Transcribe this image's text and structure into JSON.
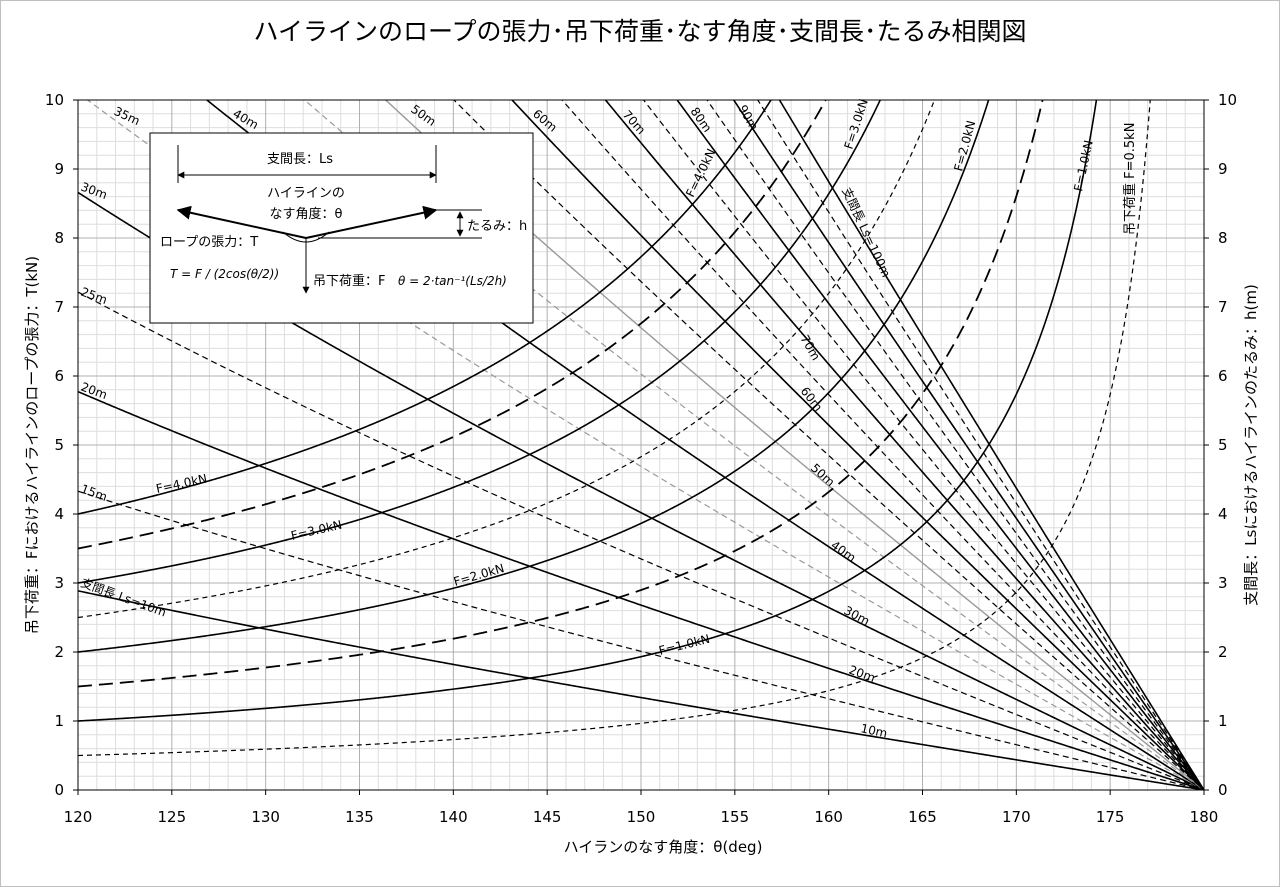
{
  "chart_data": {
    "type": "line",
    "title": "ハイラインのロープの張力･吊下荷重･なす角度･支間長･たるみ相関図",
    "xlabel": "ハイランのなす角度：θ(deg)",
    "ylabel_left": "吊下荷重：Fにおけるハイラインのロープの張力：T(kN)",
    "ylabel_right": "支間長：Lsにおけるハイラインのたるみ：h(m)",
    "xlim": [
      120,
      180
    ],
    "ylim": [
      0,
      10
    ],
    "x_ticks": [
      120,
      125,
      130,
      135,
      140,
      145,
      150,
      155,
      160,
      165,
      170,
      175,
      180
    ],
    "y_ticks": [
      0,
      1,
      2,
      3,
      4,
      5,
      6,
      7,
      8,
      9,
      10
    ],
    "grid": true,
    "tension_series": [
      {
        "F": 0.5,
        "label": "吊下荷重 F=0.5kN",
        "style": "dashed-thin"
      },
      {
        "F": 1.0,
        "label": "F=1.0kN",
        "style": "solid"
      },
      {
        "F": 1.5,
        "label": "",
        "style": "dashed-long"
      },
      {
        "F": 2.0,
        "label": "F=2.0kN",
        "style": "solid"
      },
      {
        "F": 2.5,
        "label": "",
        "style": "dashed-thin"
      },
      {
        "F": 3.0,
        "label": "F=3.0kN",
        "style": "solid"
      },
      {
        "F": 3.5,
        "label": "",
        "style": "dashed-long"
      },
      {
        "F": 4.0,
        "label": "F=4.0kN",
        "style": "solid"
      }
    ],
    "sag_series": [
      {
        "Ls": 10,
        "label_start": "支間長 Ls=10m",
        "label_end": "10m",
        "style": "solid"
      },
      {
        "Ls": 15,
        "label_start": "15m",
        "label_end": "",
        "style": "dashed"
      },
      {
        "Ls": 20,
        "label_start": "20m",
        "label_end": "20m",
        "style": "solid"
      },
      {
        "Ls": 25,
        "label_start": "25m",
        "label_end": "",
        "style": "dashed"
      },
      {
        "Ls": 30,
        "label_start": "30m",
        "label_end": "30m",
        "style": "solid"
      },
      {
        "Ls": 35,
        "label_start": "35m",
        "label_end": "",
        "style": "dashed-gray"
      },
      {
        "Ls": 40,
        "label_start": "40m",
        "label_end": "40m",
        "style": "solid"
      },
      {
        "Ls": 45,
        "label_start": "",
        "label_end": "",
        "style": "dashed-gray"
      },
      {
        "Ls": 50,
        "label_start": "50m",
        "label_end": "50m",
        "style": "solid-gray"
      },
      {
        "Ls": 55,
        "label_start": "",
        "label_end": "",
        "style": "dashed"
      },
      {
        "Ls": 60,
        "label_start": "60m",
        "label_end": "60m",
        "style": "solid"
      },
      {
        "Ls": 65,
        "label_start": "",
        "label_end": "",
        "style": "dashed"
      },
      {
        "Ls": 70,
        "label_start": "70m",
        "label_end": "70m",
        "style": "solid"
      },
      {
        "Ls": 75,
        "label_start": "",
        "label_end": "",
        "style": "dashed"
      },
      {
        "Ls": 80,
        "label_start": "80m",
        "label_end": "",
        "style": "solid"
      },
      {
        "Ls": 85,
        "label_start": "",
        "label_end": "",
        "style": "dashed"
      },
      {
        "Ls": 90,
        "label_start": "90m",
        "label_end": "",
        "style": "solid"
      },
      {
        "Ls": 95,
        "label_start": "",
        "label_end": "",
        "style": "dashed"
      },
      {
        "Ls": 100,
        "label_start": "",
        "label_end": "支間長 Ls=100m",
        "style": "solid"
      }
    ],
    "inset": {
      "span_label": "支間長：Ls",
      "angle_label_line1": "ハイラインの",
      "angle_label_line2": "なす角度：θ",
      "sag_label": "たるみ：h",
      "tension_label": "ロープの張力：T",
      "load_label": "吊下荷重：F",
      "formula_tension": "T = F / (2cos(θ/2))",
      "formula_angle": "θ = 2·tan⁻¹(Ls/2h)"
    }
  }
}
